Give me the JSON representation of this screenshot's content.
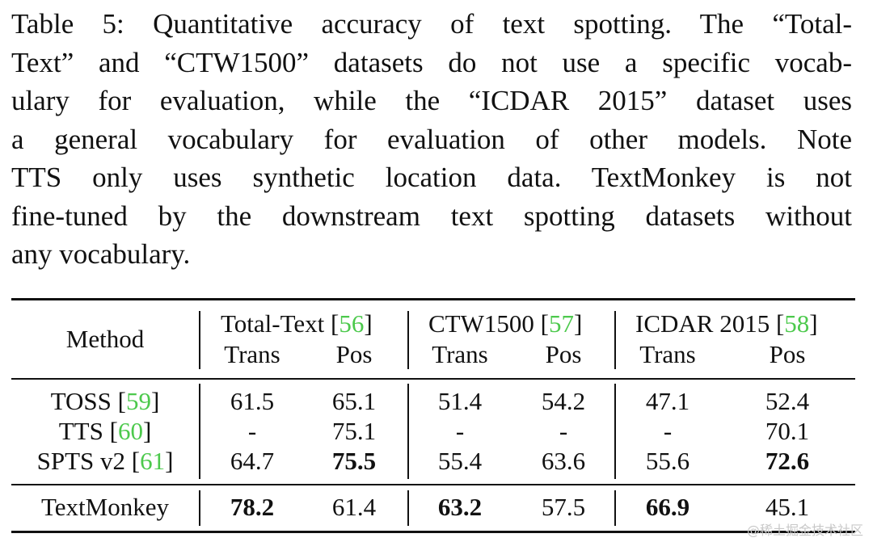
{
  "caption": {
    "lines": [
      "Table 5: Quantitative accuracy of text spotting. The “Total-",
      "Text” and “CTW1500” datasets do not use a specific vocab-",
      "ulary for evaluation, while the “ICDAR 2015” dataset uses",
      "a general vocabulary for evaluation of other models. Note",
      "TTS only uses synthetic location data. TextMonkey is not",
      "fine-tuned by the downstream text spotting datasets without",
      "any vocabulary."
    ]
  },
  "table": {
    "method_header": "Method",
    "groups": [
      {
        "name": "Total-Text",
        "ref": "56"
      },
      {
        "name": "CTW1500",
        "ref": "57"
      },
      {
        "name": "ICDAR 2015",
        "ref": "58"
      }
    ],
    "sub_headers": [
      "Trans",
      "Pos",
      "Trans",
      "Pos",
      "Trans",
      "Pos"
    ],
    "rows": [
      {
        "method": "TOSS",
        "ref": "59",
        "values": [
          "61.5",
          "65.1",
          "51.4",
          "54.2",
          "47.1",
          "52.4"
        ],
        "bold": [
          false,
          false,
          false,
          false,
          false,
          false
        ]
      },
      {
        "method": "TTS",
        "ref": "60",
        "values": [
          "-",
          "75.1",
          "-",
          "-",
          "-",
          "70.1"
        ],
        "bold": [
          false,
          false,
          false,
          false,
          false,
          false
        ]
      },
      {
        "method": "SPTS v2",
        "ref": "61",
        "values": [
          "64.7",
          "75.5",
          "55.4",
          "63.6",
          "55.6",
          "72.6"
        ],
        "bold": [
          false,
          true,
          false,
          false,
          false,
          true
        ]
      }
    ],
    "ours": {
      "method": "TextMonkey",
      "values": [
        "78.2",
        "61.4",
        "63.2",
        "57.5",
        "66.9",
        "45.1"
      ],
      "bold": [
        true,
        false,
        true,
        false,
        true,
        false
      ]
    }
  },
  "watermark": "@稀土掘金技术社区"
}
